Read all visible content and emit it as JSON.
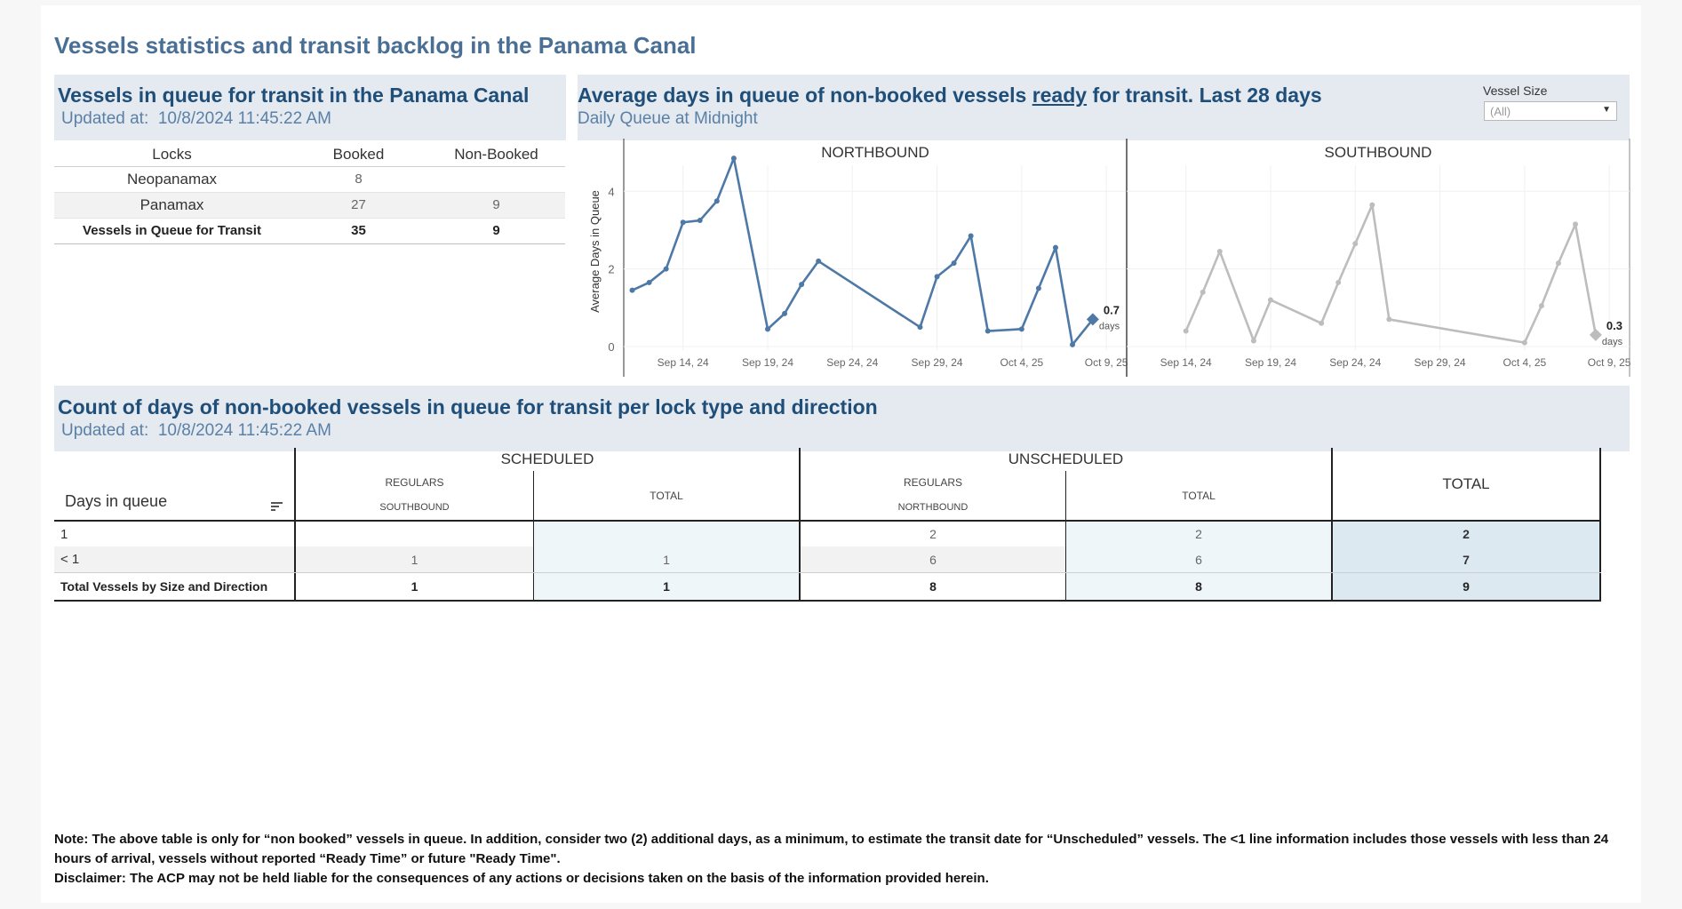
{
  "main_title": "Vessels statistics and transit backlog in the Panama Canal",
  "queue_panel": {
    "title": "Vessels in queue for transit in the Panama Canal",
    "updated_label": "Updated at:",
    "updated_value": "10/8/2024 11:45:22 AM",
    "columns": [
      "Locks",
      "Booked",
      "Non-Booked"
    ],
    "rows": [
      {
        "lock": "Neopanamax",
        "booked": "8",
        "non_booked": ""
      },
      {
        "lock": "Panamax",
        "booked": "27",
        "non_booked": "9"
      }
    ],
    "total": {
      "label": "Vessels in Queue for Transit",
      "booked": "35",
      "non_booked": "9"
    }
  },
  "chart_panel": {
    "title_before": "Average days in queue of non-booked vessels ",
    "title_underlined": "ready",
    "title_after": " for transit. Last 28 days",
    "subtitle": "Daily Queue at Midnight",
    "filter": {
      "label": "Vessel Size",
      "value": "(All)"
    }
  },
  "chart_data": [
    {
      "type": "line",
      "title": "NORTHBOUND",
      "ylabel": "Average Days in Queue",
      "ylim": [
        0,
        4.9
      ],
      "yticks": [
        0,
        2,
        4
      ],
      "xticks": [
        "Sep 14, 24",
        "Sep 19, 24",
        "Sep 24, 24",
        "Sep 29, 24",
        "Oct 4, 25",
        "Oct 9, 25"
      ],
      "xtick_days": [
        4,
        9,
        14,
        19,
        24,
        29
      ],
      "x_day_range": [
        0.5,
        30.2
      ],
      "series": [
        {
          "color": "#4e79a7",
          "x": [
            1,
            2,
            3,
            4,
            5,
            6,
            7,
            9,
            10,
            11,
            12,
            18,
            19,
            20,
            21,
            22,
            24,
            25,
            26,
            27,
            28.2
          ],
          "y": [
            1.45,
            1.65,
            2.0,
            3.2,
            3.25,
            3.75,
            4.85,
            0.45,
            0.85,
            1.6,
            2.2,
            0.5,
            1.8,
            2.15,
            2.85,
            0.4,
            0.45,
            1.5,
            2.55,
            0.05,
            0.7
          ]
        }
      ],
      "end_label": {
        "value": "0.7",
        "unit": "days"
      }
    },
    {
      "type": "line",
      "title": "SOUTHBOUND",
      "ylim": [
        0,
        4.9
      ],
      "xticks": [
        "Sep 14, 24",
        "Sep 19, 24",
        "Sep 24, 24",
        "Sep 29, 24",
        "Oct 4, 25",
        "Oct 9, 25"
      ],
      "xtick_days": [
        4,
        9,
        14,
        19,
        24,
        29
      ],
      "x_day_range": [
        0.5,
        30.2
      ],
      "series": [
        {
          "color": "#bdbdbd",
          "x": [
            4,
            5,
            6,
            8,
            9,
            12,
            13,
            14,
            15,
            16,
            24,
            25,
            26,
            27,
            28.2
          ],
          "y": [
            0.4,
            1.4,
            2.45,
            0.15,
            1.2,
            0.6,
            1.65,
            2.65,
            3.65,
            0.7,
            0.1,
            1.05,
            2.15,
            3.15,
            0.3
          ]
        }
      ],
      "end_label": {
        "value": "0.3",
        "unit": "days"
      }
    }
  ],
  "count_panel": {
    "title": "Count of days of non-booked vessels in queue for transit per lock type and direction",
    "updated_label": "Updated at:",
    "updated_value": "10/8/2024 11:45:22 AM",
    "row_header": "Days in queue",
    "groups": [
      "SCHEDULED",
      "UNSCHEDULED",
      "TOTAL"
    ],
    "sub": {
      "regulars": "REGULARS",
      "southbound": "SOUTHBOUND",
      "northbound": "NORTHBOUND",
      "total": "TOTAL"
    },
    "rows": [
      {
        "label": "1",
        "sched_reg_sb": "",
        "sched_total": "",
        "unsched_reg_nb": "2",
        "unsched_total": "2",
        "total": "2"
      },
      {
        "label": "< 1",
        "sched_reg_sb": "1",
        "sched_total": "1",
        "unsched_reg_nb": "6",
        "unsched_total": "6",
        "total": "7"
      }
    ],
    "total_row": {
      "label": "Total Vessels by Size and Direction",
      "sched_reg_sb": "1",
      "sched_total": "1",
      "unsched_reg_nb": "8",
      "unsched_total": "8",
      "total": "9"
    }
  },
  "note": {
    "line1": "Note:  The above table is only for “non booked” vessels in queue. In addition, consider two (2) additional days, as a minimum, to estimate the transit date for “Unscheduled” vessels.  The <1 line information includes those vessels with less than 24 hours of arrival, vessels without reported “Ready Time” or future \"Ready Time\".",
    "line2": "Disclaimer: The ACP may not be held liable for the consequences of any actions or decisions taken on the basis of the information provided herein."
  }
}
